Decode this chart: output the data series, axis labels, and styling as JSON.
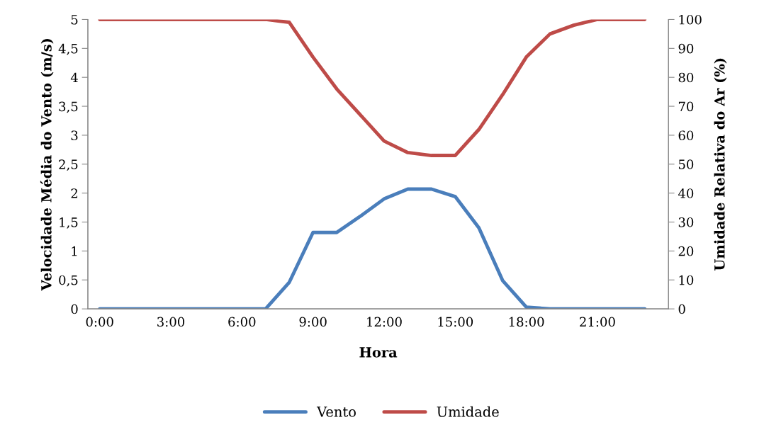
{
  "chart_data": {
    "type": "line",
    "xlabel": "Hora",
    "ylabel": "Velocidade Média do Vento (m/s)",
    "y2label": "Umidade Relativa do Ar (%)",
    "categories": [
      "0:00",
      null,
      null,
      "3:00",
      null,
      null,
      "6:00",
      null,
      null,
      "9:00",
      null,
      null,
      "12:00",
      null,
      null,
      "15:00",
      null,
      null,
      "18:00",
      null,
      null,
      "21:00",
      null,
      null
    ],
    "series": [
      {
        "name": "Vento",
        "color": "#4a7ebb",
        "values": [
          0,
          0,
          0,
          0,
          0,
          0,
          0,
          0,
          0.46,
          1.32,
          1.32,
          1.6,
          1.9,
          2.07,
          2.07,
          1.94,
          1.4,
          0.49,
          0.03,
          0,
          0,
          0,
          0,
          0
        ]
      },
      {
        "name": "Umidade",
        "color": "#be4b48",
        "axis": "y2",
        "values": [
          100,
          100,
          100,
          100,
          100,
          100,
          100,
          100,
          99,
          87,
          76,
          67,
          58,
          54,
          53,
          53,
          62,
          74,
          87,
          95,
          98,
          100,
          100,
          100
        ]
      }
    ],
    "ylim": [
      0,
      5
    ],
    "yticks": [
      0,
      {
        "value": 0.5,
        "label": "0,5"
      },
      1,
      {
        "value": 1.5,
        "label": "1,5"
      },
      2,
      {
        "value": 2.5,
        "label": "2,5"
      },
      3,
      {
        "value": 3.5,
        "label": "3,5"
      },
      4,
      {
        "value": 4.5,
        "label": "4,5"
      },
      5
    ],
    "y2lim": [
      0,
      100
    ],
    "y2ticks": [
      0,
      10,
      20,
      30,
      40,
      50,
      60,
      70,
      80,
      90,
      100
    ],
    "grid": false,
    "legend": "bottom",
    "marker": "none",
    "line_style": "solid"
  }
}
